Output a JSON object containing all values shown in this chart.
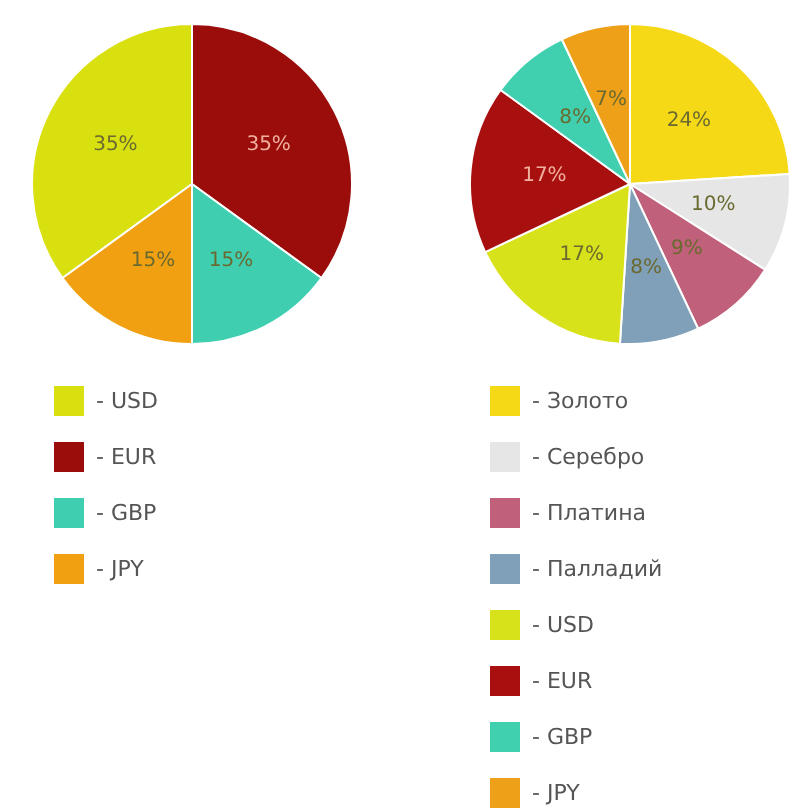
{
  "chart_data": [
    {
      "type": "pie",
      "categories": [
        "- USD",
        "- EUR",
        "- GBP",
        "- JPY"
      ],
      "values": [
        35,
        35,
        15,
        15
      ],
      "colors": [
        "#d8e010",
        "#9b0d0a",
        "#3fcfb0",
        "#f0a010"
      ],
      "value_labels": [
        "35%",
        "35%",
        "15%",
        "15%"
      ],
      "legend": "bottom"
    },
    {
      "type": "pie",
      "categories": [
        "- Золото",
        "- Серебро",
        "- Платина",
        "- Палладий",
        "- USD",
        "- EUR",
        "- GBP",
        "- JPY"
      ],
      "values": [
        24,
        10,
        9,
        8,
        17,
        17,
        8,
        7
      ],
      "colors": [
        "#f5d916",
        "#e6e6e6",
        "#c0607a",
        "#7fa0b8",
        "#d8e21a",
        "#a81010",
        "#40d0b0",
        "#eea018"
      ],
      "value_labels": [
        "24%",
        "10%",
        "9%",
        "8%",
        "17%",
        "17%",
        "8%",
        "7%"
      ],
      "legend": "bottom"
    }
  ]
}
